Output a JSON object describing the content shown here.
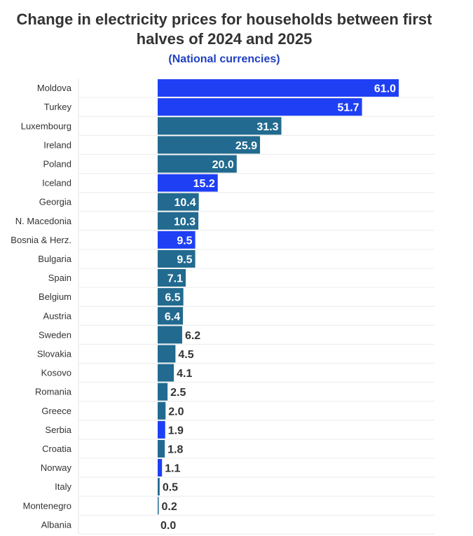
{
  "chart_data": {
    "type": "bar",
    "orientation": "horizontal",
    "title": "Change in electricity prices for households between first halves of 2024 and 2025",
    "subtitle": "(National currencies)",
    "xlim": [
      0,
      70
    ],
    "grid": true,
    "colors": {
      "highlight": "#1f3ff5",
      "default": "#226a8f"
    },
    "categories": [
      "Moldova",
      "Turkey",
      "Luxembourg",
      "Ireland",
      "Poland",
      "Iceland",
      "Georgia",
      "N. Macedonia",
      "Bosnia & Herz.",
      "Bulgaria",
      "Spain",
      "Belgium",
      "Austria",
      "Sweden",
      "Slovakia",
      "Kosovo",
      "Romania",
      "Greece",
      "Serbia",
      "Croatia",
      "Norway",
      "Italy",
      "Montenegro",
      "Albania"
    ],
    "values": [
      61.0,
      51.7,
      31.3,
      25.9,
      20.0,
      15.2,
      10.4,
      10.3,
      9.5,
      9.5,
      7.1,
      6.5,
      6.4,
      6.2,
      4.5,
      4.1,
      2.5,
      2.0,
      1.9,
      1.8,
      1.1,
      0.5,
      0.2,
      0.0
    ],
    "value_labels": [
      "61.0",
      "51.7",
      "31.3",
      "25.9",
      "20.0",
      "15.2",
      "10.4",
      "10.3",
      "9.5",
      "9.5",
      "7.1",
      "6.5",
      "6.4",
      "6.2",
      "4.5",
      "4.1",
      "2.5",
      "2.0",
      "1.9",
      "1.8",
      "1.1",
      "0.5",
      "0.2",
      "0.0"
    ],
    "highlighted": [
      true,
      true,
      false,
      false,
      false,
      true,
      false,
      false,
      true,
      false,
      false,
      false,
      false,
      false,
      false,
      false,
      false,
      false,
      true,
      false,
      true,
      false,
      false,
      false
    ]
  }
}
